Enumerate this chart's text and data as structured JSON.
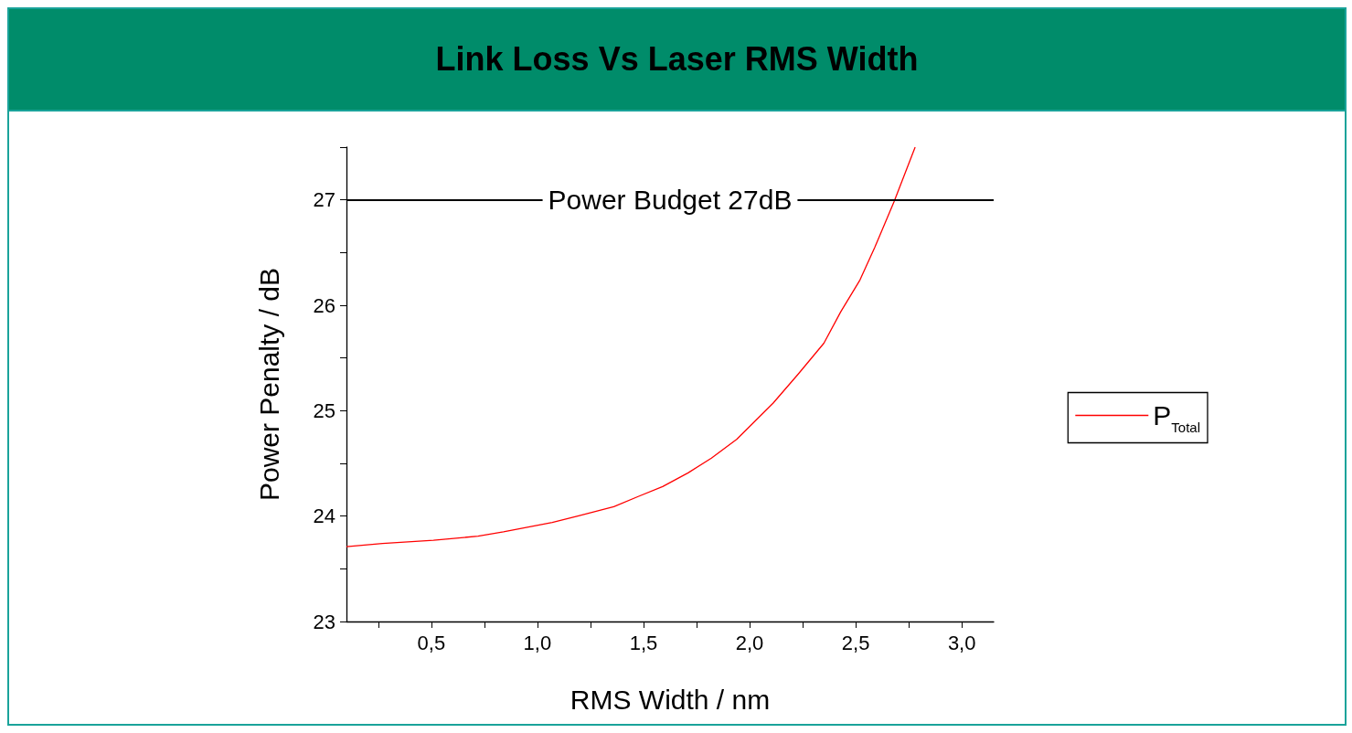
{
  "chart_data": {
    "type": "line",
    "title": "Link Loss Vs Laser RMS Width",
    "xlabel": "RMS Width / nm",
    "ylabel": "Power Penalty / dB",
    "xlim": [
      0.1,
      3.15
    ],
    "ylim": [
      23,
      27.5
    ],
    "xticks": [
      {
        "value": 0.25,
        "label": null
      },
      {
        "value": 0.5,
        "label": "0,5"
      },
      {
        "value": 0.75,
        "label": null
      },
      {
        "value": 1.0,
        "label": "1,0"
      },
      {
        "value": 1.25,
        "label": null
      },
      {
        "value": 1.5,
        "label": "1,5"
      },
      {
        "value": 1.75,
        "label": null
      },
      {
        "value": 2.0,
        "label": "2,0"
      },
      {
        "value": 2.25,
        "label": null
      },
      {
        "value": 2.5,
        "label": "2,5"
      },
      {
        "value": 2.75,
        "label": null
      },
      {
        "value": 3.0,
        "label": "3,0"
      }
    ],
    "yticks": [
      23,
      {
        "value": 23.5,
        "label": null
      },
      24,
      {
        "value": 24.5,
        "label": null
      },
      25,
      {
        "value": 25.5,
        "label": null
      },
      26,
      {
        "value": 26.5,
        "label": null
      },
      27,
      {
        "value": 27.5,
        "label": null
      }
    ],
    "series": [
      {
        "name": "P$_{Total}$",
        "color": "#ff0000",
        "x": [
          0.1,
          0.27,
          0.51,
          0.72,
          0.84,
          1.07,
          1.19,
          1.36,
          1.48,
          1.59,
          1.71,
          1.82,
          1.94,
          2.11,
          2.23,
          2.35,
          2.43,
          2.52,
          2.59,
          2.68,
          2.78
        ],
        "values": [
          23.71,
          23.74,
          23.77,
          23.81,
          23.85,
          23.94,
          24.0,
          24.09,
          24.19,
          24.28,
          24.41,
          24.55,
          24.73,
          25.07,
          25.35,
          25.64,
          25.94,
          26.24,
          26.55,
          26.98,
          27.5
        ]
      }
    ],
    "ref_lines": [
      {
        "axis": "y",
        "value": 27,
        "label": "Power Budget 27dB",
        "color": "#000000"
      }
    ],
    "legend": "right",
    "grid": false,
    "marker": "none",
    "line_style": "solid"
  }
}
